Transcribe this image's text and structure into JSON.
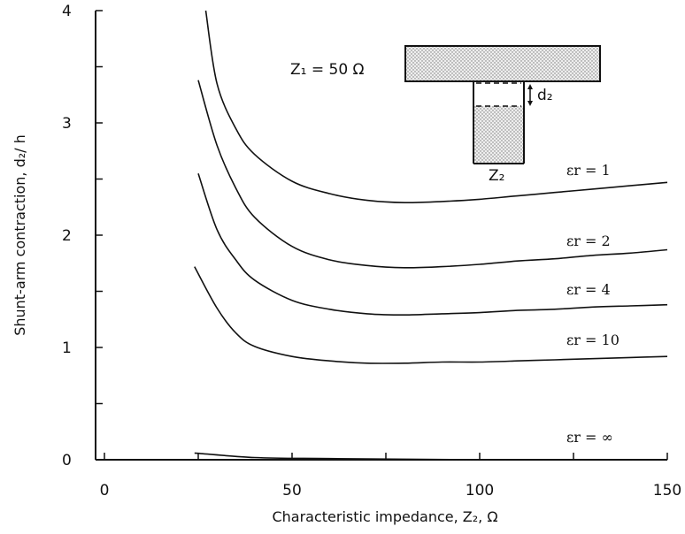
{
  "chart_data": {
    "type": "line",
    "xlabel": "Characteristic impedance, Z₂, Ω",
    "ylabel": "Shunt-arm contraction, d₂/ h",
    "xlim": [
      0,
      150
    ],
    "ylim": [
      0,
      4
    ],
    "x_ticks": [
      "0",
      "50",
      "100",
      "150"
    ],
    "y_ticks": [
      "0",
      "1",
      "2",
      "3",
      "4"
    ],
    "grid": false,
    "series": [
      {
        "name": "εr = 1",
        "points": [
          [
            27,
            4.0
          ],
          [
            30,
            3.35
          ],
          [
            35,
            2.95
          ],
          [
            40,
            2.72
          ],
          [
            50,
            2.48
          ],
          [
            60,
            2.37
          ],
          [
            70,
            2.31
          ],
          [
            80,
            2.29
          ],
          [
            90,
            2.3
          ],
          [
            100,
            2.32
          ],
          [
            110,
            2.35
          ],
          [
            120,
            2.38
          ],
          [
            130,
            2.41
          ],
          [
            140,
            2.44
          ],
          [
            150,
            2.47
          ]
        ]
      },
      {
        "name": "εr = 2",
        "points": [
          [
            25,
            3.38
          ],
          [
            30,
            2.8
          ],
          [
            35,
            2.42
          ],
          [
            40,
            2.16
          ],
          [
            50,
            1.9
          ],
          [
            60,
            1.78
          ],
          [
            70,
            1.73
          ],
          [
            80,
            1.71
          ],
          [
            90,
            1.72
          ],
          [
            100,
            1.74
          ],
          [
            110,
            1.77
          ],
          [
            120,
            1.79
          ],
          [
            130,
            1.82
          ],
          [
            140,
            1.84
          ],
          [
            150,
            1.87
          ]
        ]
      },
      {
        "name": "εr = 4",
        "points": [
          [
            25,
            2.55
          ],
          [
            30,
            2.05
          ],
          [
            35,
            1.78
          ],
          [
            40,
            1.6
          ],
          [
            50,
            1.42
          ],
          [
            60,
            1.34
          ],
          [
            70,
            1.3
          ],
          [
            80,
            1.29
          ],
          [
            90,
            1.3
          ],
          [
            100,
            1.31
          ],
          [
            110,
            1.33
          ],
          [
            120,
            1.34
          ],
          [
            130,
            1.36
          ],
          [
            140,
            1.37
          ],
          [
            150,
            1.38
          ]
        ]
      },
      {
        "name": "εr = 10",
        "points": [
          [
            24,
            1.72
          ],
          [
            30,
            1.35
          ],
          [
            35,
            1.13
          ],
          [
            40,
            1.01
          ],
          [
            50,
            0.92
          ],
          [
            60,
            0.88
          ],
          [
            70,
            0.86
          ],
          [
            80,
            0.86
          ],
          [
            90,
            0.87
          ],
          [
            100,
            0.87
          ],
          [
            110,
            0.88
          ],
          [
            120,
            0.89
          ],
          [
            130,
            0.9
          ],
          [
            140,
            0.91
          ],
          [
            150,
            0.92
          ]
        ]
      },
      {
        "name": "εr = ∞",
        "points": [
          [
            24,
            0.06
          ],
          [
            40,
            0.02
          ],
          [
            60,
            0.01
          ],
          [
            100,
            0.0
          ],
          [
            150,
            0.0
          ]
        ]
      }
    ],
    "inset": {
      "z1_label": "Z₁ = 50 Ω",
      "d2_label": "d₂",
      "z2_label": "Z₂"
    }
  }
}
